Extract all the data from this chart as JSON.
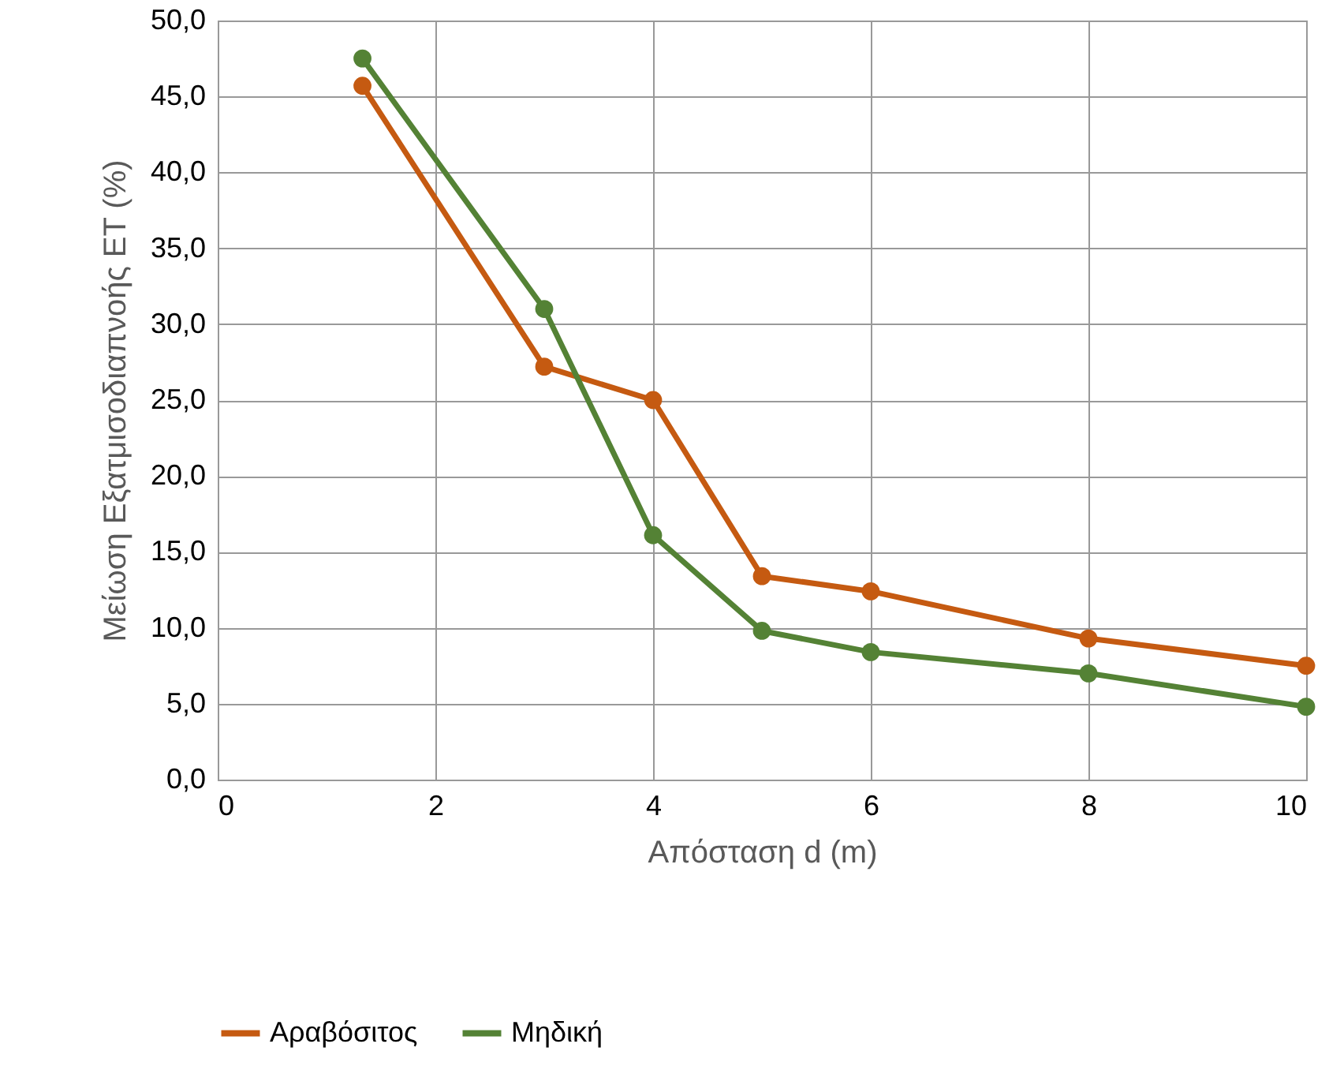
{
  "chart_data": {
    "type": "line",
    "xlabel": "Απόσταση d (m)",
    "ylabel": "Μείωση Εξατμισοδιαπνοής ET (%)",
    "series": [
      {
        "name": "Αραβόσιτος",
        "color": "#c55a11",
        "x": [
          1.33,
          3,
          4,
          5,
          6,
          8,
          10
        ],
        "values": [
          45.7,
          27.2,
          25.0,
          13.4,
          12.4,
          9.3,
          7.5
        ]
      },
      {
        "name": "Μηδική",
        "color": "#548235",
        "x": [
          1.33,
          3,
          4,
          5,
          6,
          8,
          10
        ],
        "values": [
          47.5,
          31.0,
          16.1,
          9.8,
          8.4,
          7.0,
          4.8
        ]
      }
    ],
    "xlim": [
      0,
      10
    ],
    "xticks": [
      0,
      2,
      4,
      6,
      8,
      10
    ],
    "ylim": [
      0,
      50
    ],
    "yticks": [
      {
        "value": 0,
        "label": "0,0"
      },
      {
        "value": 5,
        "label": "5,0"
      },
      {
        "value": 10,
        "label": "10,0"
      },
      {
        "value": 15,
        "label": "15,0"
      },
      {
        "value": 20,
        "label": "20,0"
      },
      {
        "value": 25,
        "label": "25,0"
      },
      {
        "value": 30,
        "label": "30,0"
      },
      {
        "value": 35,
        "label": "35,0"
      },
      {
        "value": 40,
        "label": "40,0"
      },
      {
        "value": 45,
        "label": "45,0"
      },
      {
        "value": 50,
        "label": "50,0"
      }
    ],
    "grid": true,
    "legend": "bottom",
    "marker": "circle",
    "line_style": "solid"
  }
}
